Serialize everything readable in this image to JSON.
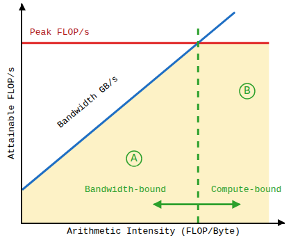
{
  "chart_data": {
    "type": "line",
    "x_label": "Arithmetic Intensity (FLOP/Byte)",
    "y_label": "Attainable FLOP/s",
    "xlim": [
      0,
      10
    ],
    "ylim": [
      0,
      10
    ],
    "xticks": [],
    "yticks": [],
    "tick_labels": false,
    "grid": false,
    "series": [
      {
        "type": "area",
        "x": [
          0,
          6.7,
          9.4
        ],
        "values": [
          1.5,
          8.2,
          8.2
        ],
        "color": "#fdf2c6",
        "line_style": "none"
      },
      {
        "type": "line",
        "x": [
          0,
          9.4
        ],
        "values": [
          8.2,
          8.2
        ],
        "color": "#e02424",
        "line_style": "solid"
      },
      {
        "type": "line",
        "x": [
          0,
          8.1
        ],
        "values": [
          1.5,
          9.6
        ],
        "color": "#1f6fc4",
        "line_style": "solid"
      },
      {
        "type": "line",
        "x": [
          6.7,
          6.7
        ],
        "values": [
          0,
          9.0
        ],
        "color": "#2ca02c",
        "line_style": "dash"
      }
    ],
    "annotations": [
      {
        "text": "Peak FLOP/s",
        "x": 1.43,
        "y": 8.67,
        "color": "#b01818"
      },
      {
        "text": "Bandwidth GB/s",
        "x": 2.5,
        "y": 5.5,
        "color": "#000000"
      },
      {
        "text": "A",
        "x": 4.26,
        "y": 2.92,
        "color": "#2ca02c",
        "marker": "circle"
      },
      {
        "text": "B",
        "x": 8.57,
        "y": 6.0,
        "color": "#2ca02c",
        "marker": "circle"
      },
      {
        "text": "Bandwidth-bound",
        "x": 3.94,
        "y": 1.52,
        "color": "#2ca02c"
      },
      {
        "text": "Compute-bound",
        "x": 8.54,
        "y": 1.52,
        "color": "#2ca02c"
      }
    ],
    "range_arrow": {
      "x0": 4.97,
      "x1": 8.33,
      "y": 0.83,
      "color": "#2ca02c"
    }
  }
}
